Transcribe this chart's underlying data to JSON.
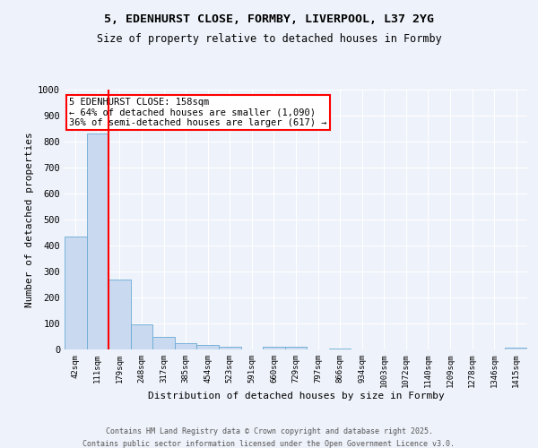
{
  "title_line1": "5, EDENHURST CLOSE, FORMBY, LIVERPOOL, L37 2YG",
  "title_line2": "Size of property relative to detached houses in Formby",
  "xlabel": "Distribution of detached houses by size in Formby",
  "ylabel": "Number of detached properties",
  "categories": [
    "42sqm",
    "111sqm",
    "179sqm",
    "248sqm",
    "317sqm",
    "385sqm",
    "454sqm",
    "523sqm",
    "591sqm",
    "660sqm",
    "729sqm",
    "797sqm",
    "866sqm",
    "934sqm",
    "1003sqm",
    "1072sqm",
    "1140sqm",
    "1209sqm",
    "1278sqm",
    "1346sqm",
    "1415sqm"
  ],
  "values": [
    435,
    830,
    270,
    96,
    50,
    24,
    16,
    12,
    0,
    10,
    10,
    0,
    5,
    0,
    0,
    0,
    0,
    0,
    0,
    0,
    8
  ],
  "bar_color": "#c8d9f0",
  "bar_edge_color": "#6aaad4",
  "vline_position": 1.5,
  "vline_color": "red",
  "annotation_text": "5 EDENHURST CLOSE: 158sqm\n← 64% of detached houses are smaller (1,090)\n36% of semi-detached houses are larger (617) →",
  "annotation_box_color": "white",
  "annotation_box_edge": "red",
  "ylim": [
    0,
    1000
  ],
  "yticks": [
    0,
    100,
    200,
    300,
    400,
    500,
    600,
    700,
    800,
    900,
    1000
  ],
  "footer_line1": "Contains HM Land Registry data © Crown copyright and database right 2025.",
  "footer_line2": "Contains public sector information licensed under the Open Government Licence v3.0.",
  "bg_color": "#eef2fa",
  "grid_color": "white"
}
